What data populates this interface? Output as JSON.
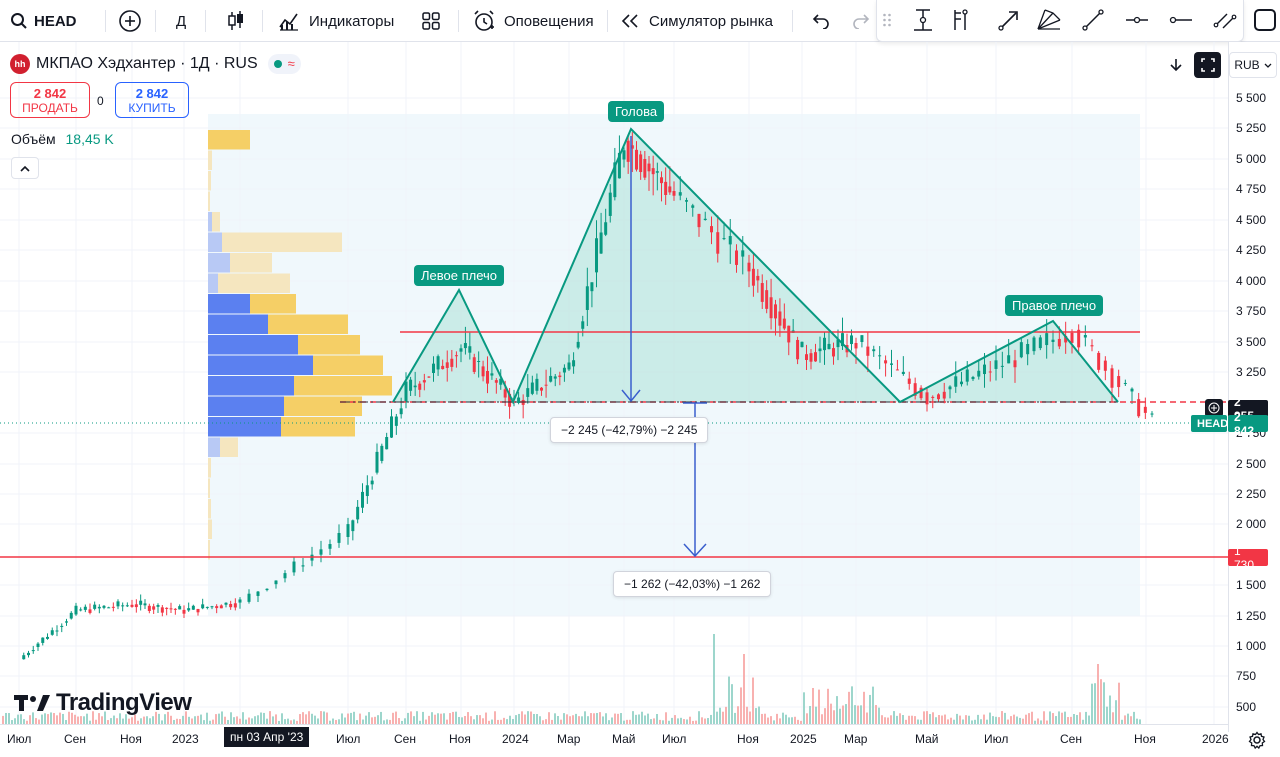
{
  "toolbar": {
    "symbol": "HEAD",
    "interval": "Д",
    "indicators_label": "Индикаторы",
    "alerts_label": "Оповещения",
    "replay_label": "Симулятор рынка"
  },
  "legend": {
    "logo_text": "hh",
    "title": "МКПАО Хэдхантер · 1Д · RUS"
  },
  "trade": {
    "sell_price": "2 842",
    "sell_label": "ПРОДАТЬ",
    "spread": "0",
    "buy_price": "2 842",
    "buy_label": "КУПИТЬ"
  },
  "volume": {
    "label": "Объём",
    "value": "18,45 K"
  },
  "currency": "RUB",
  "price_axis": [
    "5 500",
    "5 250",
    "5 000",
    "4 750",
    "4 500",
    "4 250",
    "4 000",
    "3 750",
    "3 500",
    "3 250",
    "2 750",
    "2 500",
    "2 250",
    "2 000",
    "1 500",
    "1 250",
    "1 000",
    "750",
    "500"
  ],
  "price_tags": {
    "level_value": "2 955",
    "last_symbol": "HEAD",
    "last_value": "2 842",
    "support_value": "1 730"
  },
  "time_axis": [
    "Июл",
    "Сен",
    "Ноя",
    "2023",
    "пн 03 Апр '23",
    "Июл",
    "Сен",
    "Ноя",
    "2024",
    "Мар",
    "Май",
    "Июл",
    "Ноя",
    "2025",
    "Мар",
    "Май",
    "Июл",
    "Сен",
    "Ноя",
    "2026"
  ],
  "pattern_labels": {
    "left_shoulder": "Левое плечо",
    "head": "Голова",
    "right_shoulder": "Правое плечо"
  },
  "measurements": {
    "first": "−2 245 (−42,79%) −2 245",
    "second": "−1 262 (−42,03%) −1 262"
  },
  "watermark": "TradingView",
  "colors": {
    "accent_green": "#089981",
    "accent_red": "#f23645",
    "accent_blue": "#2962ff",
    "measure_blue": "#3a5fcd"
  },
  "chart_data": {
    "type": "candlestick",
    "symbol": "HEAD",
    "interval": "1D",
    "x": [
      "2022-07",
      "2022-09",
      "2022-11",
      "2023-01",
      "2023-04-03",
      "2023-07",
      "2023-09",
      "2023-11",
      "2024-01",
      "2024-03",
      "2024-05",
      "2024-07",
      "2024-11",
      "2025-01",
      "2025-03",
      "2025-05",
      "2025-07",
      "2025-09",
      "2025-11"
    ],
    "close": [
      900,
      1300,
      1350,
      1300,
      1370,
      1950,
      3100,
      3450,
      3000,
      3300,
      5150,
      4700,
      4100,
      3400,
      3500,
      3050,
      3300,
      3600,
      2842
    ],
    "ylim": [
      400,
      5600
    ],
    "pattern": "head-and-shoulders",
    "levels": [
      {
        "name": "neckline",
        "value": 2955
      },
      {
        "name": "resistance",
        "value": 3580
      },
      {
        "name": "support",
        "value": 1730
      },
      {
        "name": "last",
        "value": 2842
      }
    ]
  }
}
